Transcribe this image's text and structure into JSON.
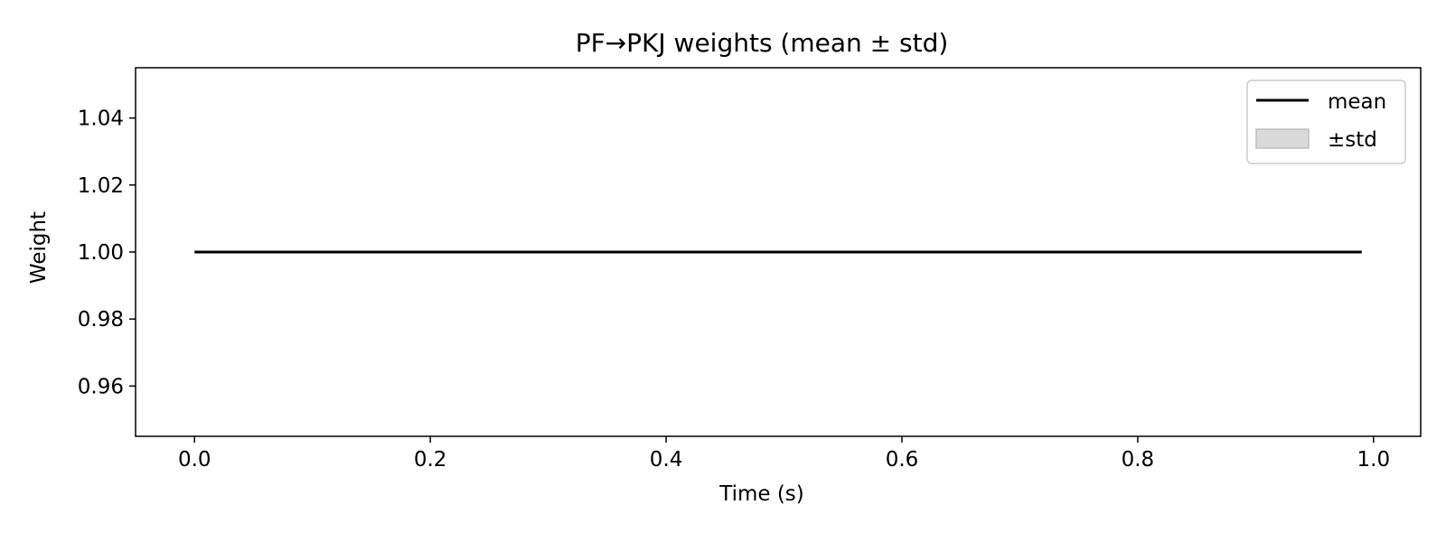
{
  "chart_data": {
    "type": "line",
    "title": "PF→PKJ weights (mean ± std)",
    "xlabel": "Time (s)",
    "ylabel": "Weight",
    "xlim": [
      -0.05,
      1.04
    ],
    "ylim": [
      0.945,
      1.055
    ],
    "x_ticks": [
      0.0,
      0.2,
      0.4,
      0.6,
      0.8,
      1.0
    ],
    "x_tick_labels": [
      "0.0",
      "0.2",
      "0.4",
      "0.6",
      "0.8",
      "1.0"
    ],
    "y_ticks": [
      0.96,
      0.98,
      1.0,
      1.02,
      1.04
    ],
    "y_tick_labels": [
      "0.96",
      "0.98",
      "1.00",
      "1.02",
      "1.04"
    ],
    "grid": false,
    "legend_position": "top-right",
    "series": [
      {
        "name": "mean",
        "kind": "line",
        "color": "#000000",
        "x": [
          0.0,
          0.99
        ],
        "y": [
          1.0,
          1.0
        ]
      },
      {
        "name": "±std",
        "kind": "band",
        "color": "#bfbfbf",
        "x": [
          0.0,
          0.99
        ],
        "lower": [
          1.0,
          1.0
        ],
        "upper": [
          1.0,
          1.0
        ]
      }
    ]
  }
}
